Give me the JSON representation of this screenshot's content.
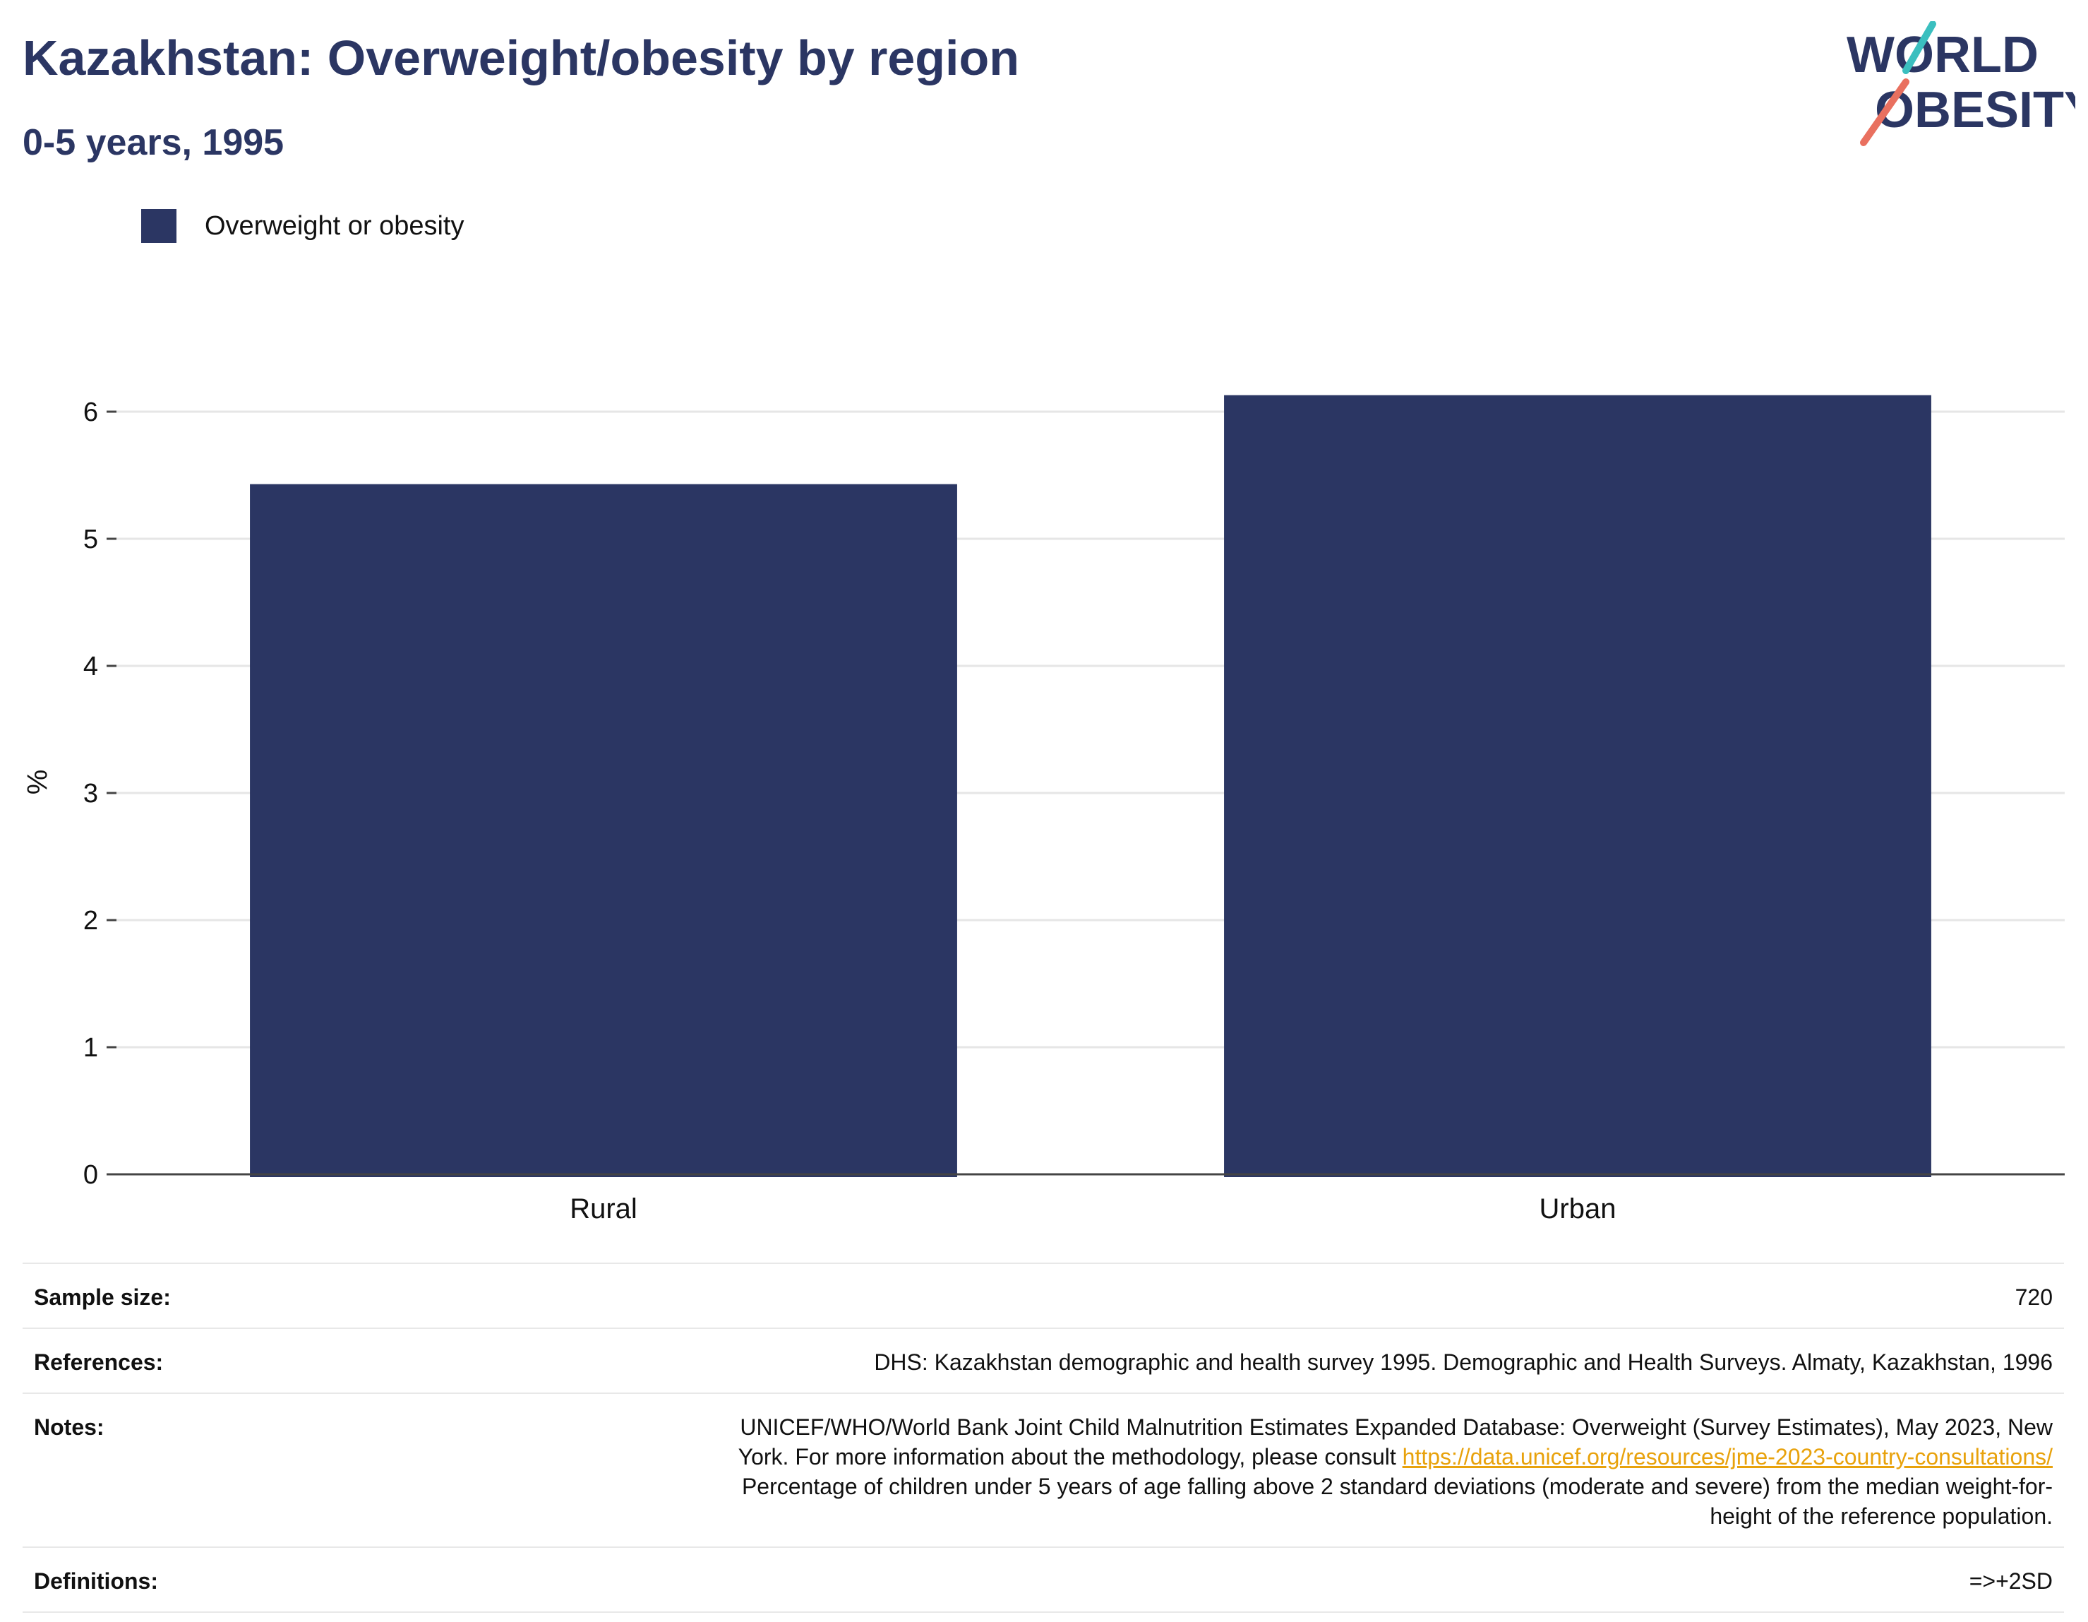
{
  "header": {
    "title": "Kazakhstan: Overweight/obesity by region",
    "subtitle": "0-5 years, 1995"
  },
  "logo": {
    "line1": "WORLD",
    "line2": "OBESITY",
    "colors": {
      "text": "#2b3663",
      "accent_teal": "#3bbfbf",
      "accent_coral": "#e9705f"
    }
  },
  "colors": {
    "bar": "#2b3663",
    "title": "#2b3663",
    "grid": "#e6e6e6",
    "link": "#e8a20c"
  },
  "chart_data": {
    "type": "bar",
    "title": "Kazakhstan: Overweight/obesity by region",
    "subtitle": "0-5 years, 1995",
    "categories": [
      "Rural",
      "Urban"
    ],
    "series": [
      {
        "name": "Overweight or obesity",
        "values": [
          5.43,
          6.13
        ]
      }
    ],
    "xlabel": "",
    "ylabel": "%",
    "ylim": [
      0,
      6.2
    ],
    "yticks": [
      0,
      1,
      2,
      3,
      4,
      5,
      6
    ],
    "grid": true,
    "legend": "top-left"
  },
  "info": {
    "sample_size": {
      "label": "Sample size:",
      "value": "720"
    },
    "references": {
      "label": "References:",
      "value": "DHS: Kazakhstan demographic and health survey 1995. Demographic and Health Surveys. Almaty, Kazakhstan, 1996"
    },
    "notes": {
      "label": "Notes:",
      "line1": "UNICEF/WHO/World Bank Joint Child Malnutrition Estimates Expanded Database: Overweight (Survey Estimates), May 2023, New",
      "line2_prefix": "York. For more information about the methodology, please consult",
      "link": "https://data.unicef.org/resources/jme-2023-country-consultations/",
      "line3": "Percentage of children under 5 years of age falling above 2 standard deviations (moderate and severe) from the median weight-for-",
      "line4": "height of the reference population."
    },
    "definitions": {
      "label": "Definitions:",
      "value": "=>+2SD"
    }
  }
}
